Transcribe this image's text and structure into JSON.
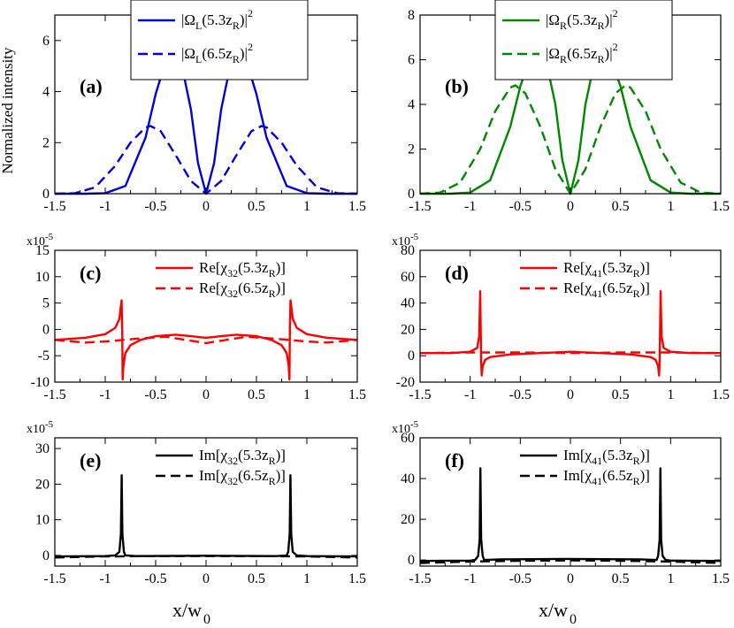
{
  "figure": {
    "ylabel": "Normalized intensity",
    "xlabel_main": "x/w",
    "xlabel_sub": "0"
  },
  "chart_data": [
    {
      "id": "a",
      "type": "line",
      "panel_label": "(a)",
      "multiplier": "",
      "xlim": [
        -1.5,
        1.5
      ],
      "ylim": [
        0,
        7
      ],
      "xticks": [
        "-1.5",
        "-1",
        "-0.5",
        "0",
        "0.5",
        "1",
        "1.5"
      ],
      "yticks": [
        "0",
        "2",
        "4",
        "6"
      ],
      "ytick_values": [
        0,
        2,
        4,
        6
      ],
      "legend_position": "top-center",
      "legend_box": true,
      "series": [
        {
          "name_main": "|Ω",
          "name_sub": "L",
          "name_mid": "(5.3z",
          "name_sub2": "R",
          "name_end": ")|",
          "name_sup": "2",
          "color": "#0000dd",
          "dash": "solid",
          "x": [
            -1.5,
            -1.2,
            -1.0,
            -0.8,
            -0.6,
            -0.5,
            -0.4,
            -0.32,
            -0.25,
            -0.15,
            -0.08,
            0,
            0.08,
            0.15,
            0.25,
            0.32,
            0.4,
            0.5,
            0.6,
            0.8,
            1.0,
            1.2,
            1.5
          ],
          "y": [
            0,
            0,
            0.02,
            0.3,
            2.2,
            3.9,
            5.2,
            5.55,
            5.2,
            3.3,
            1.2,
            0,
            1.2,
            3.3,
            5.2,
            5.55,
            5.2,
            3.9,
            2.2,
            0.3,
            0.02,
            0,
            0
          ]
        },
        {
          "name_main": "|Ω",
          "name_sub": "L",
          "name_mid": "(6.5z",
          "name_sub2": "R",
          "name_end": ")|",
          "name_sup": "2",
          "color": "#0000dd",
          "dash": "dashed",
          "x": [
            -1.5,
            -1.3,
            -1.1,
            -0.9,
            -0.75,
            -0.6,
            -0.55,
            -0.45,
            -0.3,
            -0.15,
            0,
            0.15,
            0.3,
            0.45,
            0.55,
            0.6,
            0.75,
            0.9,
            1.1,
            1.3,
            1.5
          ],
          "y": [
            0,
            0.02,
            0.25,
            1.1,
            2.0,
            2.6,
            2.65,
            2.45,
            1.5,
            0.5,
            0,
            0.5,
            1.5,
            2.45,
            2.65,
            2.6,
            2.0,
            1.1,
            0.25,
            0.02,
            0
          ]
        }
      ]
    },
    {
      "id": "b",
      "type": "line",
      "panel_label": "(b)",
      "multiplier": "",
      "xlim": [
        -1.5,
        1.5
      ],
      "ylim": [
        0,
        8
      ],
      "xticks": [
        "-1.5",
        "-1",
        "-0.5",
        "0",
        "0.5",
        "1",
        "1.5"
      ],
      "yticks": [
        "0",
        "2",
        "4",
        "6",
        "8"
      ],
      "ytick_values": [
        0,
        2,
        4,
        6,
        8
      ],
      "legend_position": "top-center",
      "legend_box": true,
      "series": [
        {
          "name_main": "|Ω",
          "name_sub": "R",
          "name_mid": "(5.3z",
          "name_sub2": "R",
          "name_end": ")|",
          "name_sup": "2",
          "color": "#008800",
          "dash": "solid",
          "x": [
            -1.5,
            -1.2,
            -1.0,
            -0.8,
            -0.6,
            -0.5,
            -0.4,
            -0.32,
            -0.25,
            -0.15,
            -0.08,
            0,
            0.08,
            0.15,
            0.25,
            0.32,
            0.4,
            0.5,
            0.6,
            0.8,
            1.0,
            1.2,
            1.5
          ],
          "y": [
            0,
            0,
            0.05,
            0.6,
            3.0,
            4.8,
            6.1,
            6.5,
            6.1,
            4.0,
            1.5,
            0,
            1.5,
            4.0,
            6.1,
            6.5,
            6.1,
            4.8,
            3.0,
            0.6,
            0.05,
            0,
            0
          ]
        },
        {
          "name_main": "|Ω",
          "name_sub": "R",
          "name_mid": "(6.5z",
          "name_sub2": "R",
          "name_end": ")|",
          "name_sup": "2",
          "color": "#008800",
          "dash": "dashed",
          "x": [
            -1.5,
            -1.3,
            -1.1,
            -0.9,
            -0.75,
            -0.6,
            -0.55,
            -0.45,
            -0.3,
            -0.15,
            0,
            0.15,
            0.3,
            0.45,
            0.55,
            0.6,
            0.75,
            0.9,
            1.1,
            1.3,
            1.5
          ],
          "y": [
            0,
            0.05,
            0.5,
            2.0,
            3.7,
            4.75,
            4.85,
            4.5,
            3.0,
            1.1,
            0,
            1.1,
            3.0,
            4.5,
            4.85,
            4.75,
            3.7,
            2.0,
            0.5,
            0.05,
            0
          ]
        }
      ]
    },
    {
      "id": "c",
      "type": "line",
      "panel_label": "(c)",
      "multiplier": "x10",
      "multiplier_exp": "-5",
      "xlim": [
        -1.5,
        1.5
      ],
      "ylim": [
        -10,
        15
      ],
      "xticks": [
        "-1.5",
        "-1",
        "-0.5",
        "0",
        "0.5",
        "1",
        "1.5"
      ],
      "yticks": [
        "-10",
        "-5",
        "0",
        "5",
        "10",
        "15"
      ],
      "ytick_values": [
        -10,
        -5,
        0,
        5,
        10,
        15
      ],
      "legend_position": "top-center",
      "legend_box": false,
      "series": [
        {
          "name_main": "Re[χ",
          "name_sub": "32",
          "name_mid": "(5.3z",
          "name_sub2": "R",
          "name_end": ")]",
          "name_sup": "",
          "color": "#ff0000",
          "dash": "solid",
          "x": [
            -1.5,
            -1.2,
            -1.0,
            -0.9,
            -0.86,
            -0.845,
            -0.838,
            -0.832,
            -0.827,
            -0.82,
            -0.8,
            -0.75,
            -0.65,
            -0.5,
            -0.3,
            -0.15,
            0,
            0.15,
            0.3,
            0.5,
            0.65,
            0.75,
            0.8,
            0.82,
            0.827,
            0.832,
            0.838,
            0.845,
            0.86,
            0.9,
            1.0,
            1.2,
            1.5
          ],
          "y": [
            -2,
            -1.6,
            -0.9,
            0.3,
            2.0,
            4.5,
            5.5,
            0,
            -9.5,
            -7.0,
            -4.5,
            -3.0,
            -2.0,
            -1.3,
            -1.0,
            -1.3,
            -1.6,
            -1.3,
            -1.0,
            -1.3,
            -2.0,
            -3.0,
            -4.5,
            -7.0,
            -9.5,
            0,
            5.5,
            4.5,
            2.0,
            0.3,
            -0.9,
            -1.6,
            -2
          ]
        },
        {
          "name_main": "Re[χ",
          "name_sub": "32",
          "name_mid": "(6.5z",
          "name_sub2": "R",
          "name_end": ")]",
          "name_sup": "",
          "color": "#ff0000",
          "dash": "dashed",
          "x": [
            -1.5,
            -1.2,
            -1.0,
            -0.7,
            -0.4,
            -0.2,
            0,
            0.2,
            0.4,
            0.7,
            1.0,
            1.2,
            1.5
          ],
          "y": [
            -2.0,
            -2.5,
            -2.3,
            -1.8,
            -1.4,
            -2.0,
            -2.6,
            -2.0,
            -1.4,
            -1.8,
            -2.3,
            -2.5,
            -2.0
          ]
        }
      ]
    },
    {
      "id": "d",
      "type": "line",
      "panel_label": "(d)",
      "multiplier": "x10",
      "multiplier_exp": "-5",
      "xlim": [
        -1.5,
        1.5
      ],
      "ylim": [
        -20,
        80
      ],
      "xticks": [
        "-1.5",
        "-1",
        "-0.5",
        "0",
        "0.5",
        "1",
        "1.5"
      ],
      "yticks": [
        "-20",
        "0",
        "20",
        "40",
        "60",
        "80"
      ],
      "ytick_values": [
        -20,
        0,
        20,
        40,
        60,
        80
      ],
      "legend_position": "top-center",
      "legend_box": false,
      "series": [
        {
          "name_main": "Re[χ",
          "name_sub": "41",
          "name_mid": "(5.3z",
          "name_sub2": "R",
          "name_end": ")]",
          "name_sup": "",
          "color": "#ff0000",
          "dash": "solid",
          "x": [
            -1.5,
            -1.2,
            -1.0,
            -0.93,
            -0.91,
            -0.9,
            -0.895,
            -0.89,
            -0.885,
            -0.875,
            -0.85,
            -0.8,
            -0.6,
            -0.3,
            0,
            0.3,
            0.6,
            0.8,
            0.85,
            0.875,
            0.885,
            0.89,
            0.895,
            0.9,
            0.91,
            0.93,
            1.0,
            1.2,
            1.5
          ],
          "y": [
            2,
            2,
            3,
            6,
            15,
            49,
            20,
            -5,
            -15,
            -8,
            -3,
            -1,
            1,
            2,
            3,
            2,
            1,
            -1,
            -3,
            -8,
            -15,
            -5,
            20,
            49,
            15,
            6,
            3,
            2,
            2
          ]
        },
        {
          "name_main": "Re[χ",
          "name_sub": "41",
          "name_mid": "(6.5z",
          "name_sub2": "R",
          "name_end": ")]",
          "name_sup": "",
          "color": "#ff0000",
          "dash": "dashed",
          "x": [
            -1.5,
            -1.0,
            -0.5,
            0,
            0.5,
            1.0,
            1.5
          ],
          "y": [
            2,
            2.5,
            2.5,
            2,
            2.5,
            2.5,
            2
          ]
        }
      ]
    },
    {
      "id": "e",
      "type": "line",
      "panel_label": "(e)",
      "multiplier": "x10",
      "multiplier_exp": "-5",
      "xlim": [
        -1.5,
        1.5
      ],
      "ylim": [
        -3,
        33
      ],
      "xticks": [
        "-1.5",
        "-1",
        "-0.5",
        "0",
        "0.5",
        "1",
        "1.5"
      ],
      "yticks": [
        "0",
        "10",
        "20",
        "30"
      ],
      "ytick_values": [
        0,
        10,
        20,
        30
      ],
      "legend_position": "top-center",
      "legend_box": false,
      "series": [
        {
          "name_main": "Im[χ",
          "name_sub": "32",
          "name_mid": "(5.3z",
          "name_sub2": "R",
          "name_end": ")]",
          "name_sup": "",
          "color": "#000000",
          "dash": "solid",
          "x": [
            -1.5,
            -1.0,
            -0.9,
            -0.86,
            -0.845,
            -0.837,
            -0.83,
            -0.815,
            -0.8,
            -0.7,
            0,
            0.7,
            0.8,
            0.815,
            0.83,
            0.837,
            0.845,
            0.86,
            0.9,
            1.0,
            1.5
          ],
          "y": [
            -0.3,
            -0.2,
            0,
            1.0,
            6.0,
            22.5,
            6.0,
            1.0,
            0,
            -0.2,
            -0.1,
            -0.2,
            0,
            1.0,
            6.0,
            22.5,
            6.0,
            1.0,
            0,
            -0.2,
            -0.3
          ]
        },
        {
          "name_main": "Im[χ",
          "name_sub": "32",
          "name_mid": "(6.5z",
          "name_sub2": "R",
          "name_end": ")]",
          "name_sup": "",
          "color": "#000000",
          "dash": "dashed",
          "x": [
            -1.5,
            -1.0,
            -0.5,
            0,
            0.5,
            1.0,
            1.5
          ],
          "y": [
            -0.6,
            -0.3,
            -0.2,
            -0.2,
            -0.2,
            -0.3,
            -0.6
          ]
        }
      ]
    },
    {
      "id": "f",
      "type": "line",
      "panel_label": "(f)",
      "multiplier": "x10",
      "multiplier_exp": "-5",
      "xlim": [
        -1.5,
        1.5
      ],
      "ylim": [
        -3,
        60
      ],
      "xticks": [
        "-1.5",
        "-1",
        "-0.5",
        "0",
        "0.5",
        "1",
        "1.5"
      ],
      "yticks": [
        "0",
        "20",
        "40",
        "60"
      ],
      "ytick_values": [
        0,
        20,
        40,
        60
      ],
      "legend_position": "top-center",
      "legend_box": false,
      "series": [
        {
          "name_main": "Im[χ",
          "name_sub": "41",
          "name_mid": "(5.3z",
          "name_sub2": "R",
          "name_end": ")]",
          "name_sup": "",
          "color": "#000000",
          "dash": "solid",
          "x": [
            -1.5,
            -1.0,
            -0.95,
            -0.92,
            -0.905,
            -0.898,
            -0.89,
            -0.875,
            -0.86,
            -0.7,
            0,
            0.7,
            0.86,
            0.875,
            0.89,
            0.898,
            0.905,
            0.92,
            0.95,
            1.0,
            1.5
          ],
          "y": [
            -0.5,
            -0.3,
            0,
            2.0,
            10.0,
            45.0,
            10.0,
            2.0,
            0,
            0.3,
            0.5,
            0.3,
            0,
            2.0,
            10.0,
            45.0,
            10.0,
            2.0,
            0,
            -0.3,
            -0.5
          ]
        },
        {
          "name_main": "Im[χ",
          "name_sub": "41",
          "name_mid": "(6.5z",
          "name_sub2": "R",
          "name_end": ")]",
          "name_sup": "",
          "color": "#000000",
          "dash": "dashed",
          "x": [
            -1.5,
            -1.0,
            -0.5,
            0,
            0.5,
            1.0,
            1.5
          ],
          "y": [
            -1.5,
            -0.8,
            -0.4,
            -0.2,
            -0.4,
            -0.8,
            -1.5
          ]
        }
      ]
    }
  ]
}
